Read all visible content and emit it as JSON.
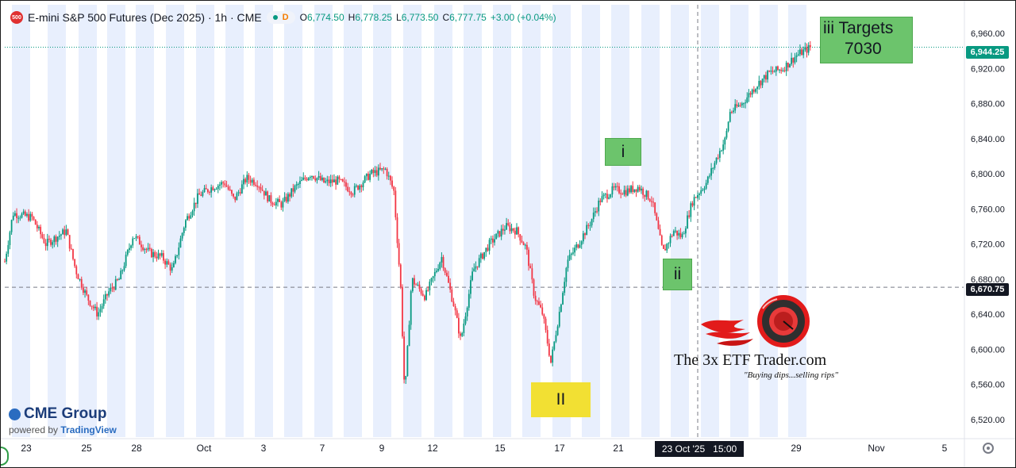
{
  "header": {
    "symbol_icon_text": "500",
    "title": "E-mini S&P 500 Futures (Dec 2025) · 1h · CME",
    "market_status_label": "D",
    "ohlc": [
      {
        "k": "O",
        "v": "6,774.50"
      },
      {
        "k": "H",
        "v": "6,778.25"
      },
      {
        "k": "L",
        "v": "6,773.50"
      },
      {
        "k": "C",
        "v": "6,777.75"
      }
    ],
    "change": "+3.00 (+0.04%)"
  },
  "annotations": {
    "i": "i",
    "ii": "ii",
    "II": "II",
    "targets_line1": "iii  Targets",
    "targets_line2": "7030"
  },
  "watermark": {
    "title": "The 3x ETF Trader.com",
    "subtitle": "\"Buying dips...selling rips\""
  },
  "branding": {
    "name": "CME Group",
    "powered_prefix": "powered by",
    "powered_brand": "TradingView"
  },
  "crosshair": {
    "price_label": "6,670.75",
    "date_label": "23 Oct '25",
    "time_label": "15:00"
  },
  "last_price_label": "6,944.25",
  "colors": {
    "up": "#089981",
    "down": "#f23645",
    "session_band": "#e8effd",
    "annotation_green": "#6cc46c",
    "annotation_yellow": "#f2e033"
  },
  "chart_data": {
    "type": "candlestick",
    "symbol": "ES Dec 2025",
    "interval": "1h",
    "ylim": [
      6500,
      6970
    ],
    "y_ticks": [
      6520,
      6560,
      6600,
      6640,
      6680,
      6720,
      6760,
      6800,
      6840,
      6880,
      6920,
      6960
    ],
    "y_tick_labels": [
      "6,520.00",
      "6,560.00",
      "6,600.00",
      "6,640.00",
      "6,680.00",
      "6,720.00",
      "6,760.00",
      "6,800.00",
      "6,840.00",
      "6,880.00",
      "6,920.00",
      "6,960.00"
    ],
    "x_labels": [
      "23",
      "25",
      "28",
      "Oct",
      "3",
      "7",
      "9",
      "12",
      "15",
      "17",
      "21",
      "29",
      "Nov",
      "5"
    ],
    "last_price": 6944.25,
    "crosshair_price": 6670.75,
    "path": [
      [
        0,
        6700
      ],
      [
        0.6,
        6755
      ],
      [
        2,
        6750
      ],
      [
        3,
        6720
      ],
      [
        4.5,
        6735
      ],
      [
        5.2,
        6690
      ],
      [
        6,
        6660
      ],
      [
        6.8,
        6640
      ],
      [
        7.6,
        6665
      ],
      [
        8.4,
        6680
      ],
      [
        9.4,
        6730
      ],
      [
        10.6,
        6710
      ],
      [
        11.5,
        6705
      ],
      [
        12.3,
        6690
      ],
      [
        13.2,
        6745
      ],
      [
        14.2,
        6775
      ],
      [
        15.2,
        6785
      ],
      [
        16.1,
        6790
      ],
      [
        16.8,
        6770
      ],
      [
        17.7,
        6795
      ],
      [
        18.5,
        6790
      ],
      [
        19.4,
        6770
      ],
      [
        20.3,
        6765
      ],
      [
        21.3,
        6785
      ],
      [
        22.4,
        6800
      ],
      [
        23.4,
        6790
      ],
      [
        24.4,
        6792
      ],
      [
        25.5,
        6780
      ],
      [
        26.8,
        6800
      ],
      [
        27.9,
        6805
      ],
      [
        28.5,
        6780
      ],
      [
        29.0,
        6670
      ],
      [
        29.3,
        6545
      ],
      [
        29.8,
        6680
      ],
      [
        30.8,
        6660
      ],
      [
        32.0,
        6705
      ],
      [
        32.9,
        6650
      ],
      [
        33.4,
        6610
      ],
      [
        34.3,
        6690
      ],
      [
        35.5,
        6720
      ],
      [
        36.7,
        6740
      ],
      [
        37.5,
        6735
      ],
      [
        38.2,
        6715
      ],
      [
        38.8,
        6660
      ],
      [
        39.4,
        6640
      ],
      [
        40.0,
        6585
      ],
      [
        40.6,
        6640
      ],
      [
        41.2,
        6700
      ],
      [
        42.0,
        6720
      ],
      [
        42.9,
        6745
      ],
      [
        43.6,
        6770
      ],
      [
        44.6,
        6782
      ],
      [
        45.5,
        6780
      ],
      [
        46.4,
        6785
      ],
      [
        47.4,
        6770
      ],
      [
        48.2,
        6710
      ],
      [
        49.0,
        6735
      ],
      [
        49.6,
        6728
      ],
      [
        50.4,
        6770
      ],
      [
        51.4,
        6790
      ],
      [
        52.2,
        6820
      ],
      [
        52.8,
        6840
      ],
      [
        53.1,
        6870
      ],
      [
        54.0,
        6880
      ],
      [
        55.0,
        6900
      ],
      [
        56.0,
        6915
      ],
      [
        57.0,
        6920
      ],
      [
        58.0,
        6935
      ],
      [
        59.0,
        6944
      ]
    ]
  }
}
